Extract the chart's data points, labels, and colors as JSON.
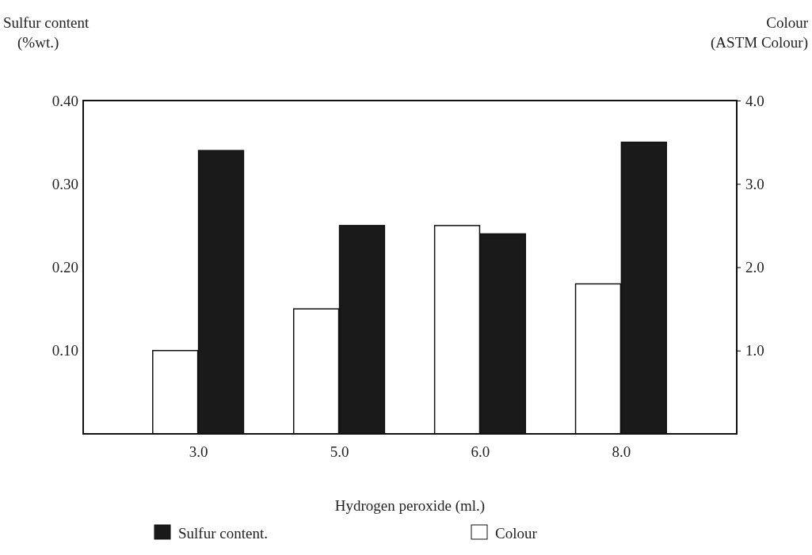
{
  "chart_data": {
    "type": "bar",
    "xlabel": "Hydrogen peroxide (ml.)",
    "ylabel": "Sulfur content (%wt.)",
    "y2label": "Colour (ASTM Colour)",
    "categories": [
      "3.0",
      "5.0",
      "6.0",
      "8.0"
    ],
    "series": [
      {
        "name": "Colour",
        "color": "#ffffff",
        "axis": "y2",
        "values": [
          1.0,
          1.5,
          2.5,
          1.8
        ]
      },
      {
        "name": "Sulfur content.",
        "color": "#1a1a1a",
        "values": [
          0.34,
          0.25,
          0.24,
          0.35
        ]
      }
    ],
    "ylim": [
      0,
      0.4
    ],
    "yticks": [
      {
        "value": 0.1,
        "label": "0.10"
      },
      {
        "value": 0.2,
        "label": "0.20"
      },
      {
        "value": 0.3,
        "label": "0.30"
      },
      {
        "value": 0.4,
        "label": "0.40"
      }
    ],
    "y2lim": [
      0,
      4
    ],
    "y2ticks": [
      {
        "value": 1,
        "label": "1.0"
      },
      {
        "value": 2,
        "label": "2.0"
      },
      {
        "value": 3,
        "label": "3.0"
      },
      {
        "value": 4,
        "label": "4.0"
      }
    ],
    "grid": false,
    "legend": "bottom"
  }
}
